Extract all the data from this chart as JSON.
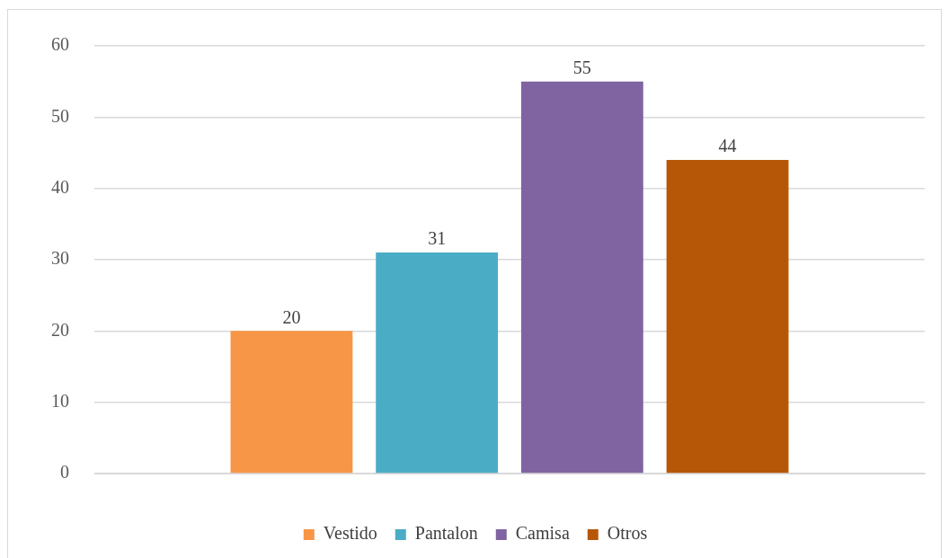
{
  "chart_data": {
    "type": "bar",
    "categories": [
      null
    ],
    "series": [
      {
        "name": "Vestido",
        "color": "#f79646",
        "values": [
          20
        ]
      },
      {
        "name": "Pantalon",
        "color": "#4bacc6",
        "values": [
          31
        ]
      },
      {
        "name": "Camisa",
        "color": "#8064a2",
        "values": [
          55
        ]
      },
      {
        "name": "Otros",
        "color": "#b65708",
        "values": [
          44
        ]
      }
    ],
    "ylim": [
      0,
      60
    ],
    "yticks": [
      0,
      10,
      20,
      30,
      40,
      50,
      60
    ],
    "grid": "y",
    "legend": "bottom",
    "data_labels": true
  }
}
